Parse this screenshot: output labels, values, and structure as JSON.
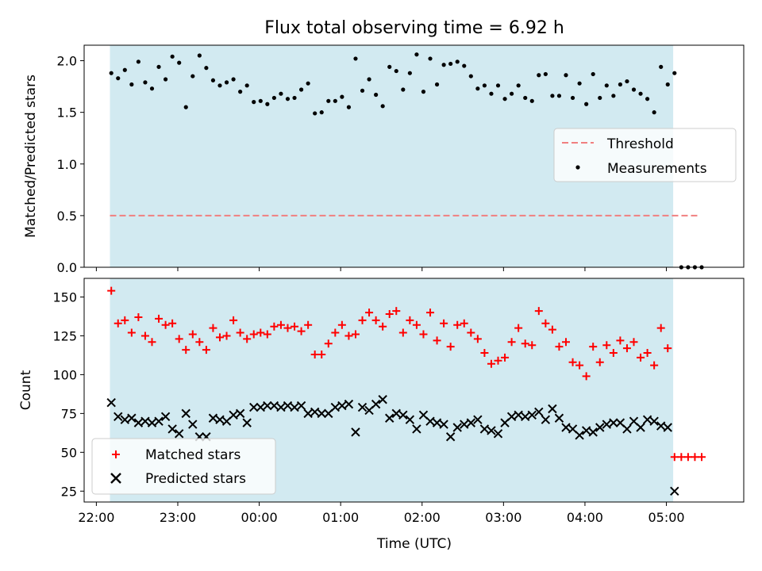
{
  "figure": {
    "title": "Flux total observing time = 6.92 h",
    "xlabel": "Time (UTC)",
    "colors": {
      "shade": "#add8e6",
      "measurement": "#000000",
      "threshold": "#f08080",
      "matched": "#ff0000",
      "predicted": "#000000"
    }
  },
  "chart_data": [
    {
      "type": "scatter",
      "ylabel": "Matched/Predicted stars",
      "ylim": [
        0,
        2.15
      ],
      "xlim": [
        "21:51",
        "05:57"
      ],
      "y_ticks": [
        "0.0",
        "0.5",
        "1.0",
        "1.5",
        "2.0"
      ],
      "shaded_span": [
        "22:10",
        "05:05"
      ],
      "threshold": {
        "name": "Threshold",
        "value": 0.5,
        "x": [
          "22:10",
          "05:25"
        ]
      },
      "legend_position": "center-right",
      "series": [
        {
          "name": "Measurements",
          "points": [
            [
              "22:11",
              1.88
            ],
            [
              "22:16",
              1.83
            ],
            [
              "22:21",
              1.91
            ],
            [
              "22:26",
              1.77
            ],
            [
              "22:31",
              1.99
            ],
            [
              "22:36",
              1.79
            ],
            [
              "22:41",
              1.73
            ],
            [
              "22:46",
              1.94
            ],
            [
              "22:51",
              1.82
            ],
            [
              "22:56",
              2.04
            ],
            [
              "23:01",
              1.98
            ],
            [
              "23:06",
              1.55
            ],
            [
              "23:11",
              1.85
            ],
            [
              "23:16",
              2.05
            ],
            [
              "23:21",
              1.93
            ],
            [
              "23:26",
              1.81
            ],
            [
              "23:31",
              1.76
            ],
            [
              "23:36",
              1.79
            ],
            [
              "23:41",
              1.82
            ],
            [
              "23:46",
              1.7
            ],
            [
              "23:51",
              1.76
            ],
            [
              "23:56",
              1.6
            ],
            [
              "00:01",
              1.61
            ],
            [
              "00:06",
              1.58
            ],
            [
              "00:11",
              1.64
            ],
            [
              "00:16",
              1.68
            ],
            [
              "00:21",
              1.63
            ],
            [
              "00:26",
              1.64
            ],
            [
              "00:31",
              1.72
            ],
            [
              "00:36",
              1.78
            ],
            [
              "00:41",
              1.49
            ],
            [
              "00:46",
              1.5
            ],
            [
              "00:51",
              1.61
            ],
            [
              "00:56",
              1.61
            ],
            [
              "01:01",
              1.65
            ],
            [
              "01:06",
              1.55
            ],
            [
              "01:11",
              2.02
            ],
            [
              "01:16",
              1.71
            ],
            [
              "01:21",
              1.82
            ],
            [
              "01:26",
              1.67
            ],
            [
              "01:31",
              1.56
            ],
            [
              "01:36",
              1.94
            ],
            [
              "01:41",
              1.9
            ],
            [
              "01:46",
              1.72
            ],
            [
              "01:51",
              1.88
            ],
            [
              "01:56",
              2.06
            ],
            [
              "02:01",
              1.7
            ],
            [
              "02:06",
              2.02
            ],
            [
              "02:11",
              1.77
            ],
            [
              "02:16",
              1.96
            ],
            [
              "02:21",
              1.97
            ],
            [
              "02:26",
              1.99
            ],
            [
              "02:31",
              1.95
            ],
            [
              "02:36",
              1.85
            ],
            [
              "02:41",
              1.73
            ],
            [
              "02:46",
              1.76
            ],
            [
              "02:51",
              1.68
            ],
            [
              "02:56",
              1.76
            ],
            [
              "03:01",
              1.63
            ],
            [
              "03:06",
              1.68
            ],
            [
              "03:11",
              1.76
            ],
            [
              "03:16",
              1.64
            ],
            [
              "03:21",
              1.61
            ],
            [
              "03:26",
              1.86
            ],
            [
              "03:31",
              1.87
            ],
            [
              "03:36",
              1.66
            ],
            [
              "03:41",
              1.66
            ],
            [
              "03:46",
              1.86
            ],
            [
              "03:51",
              1.64
            ],
            [
              "03:56",
              1.78
            ],
            [
              "04:01",
              1.58
            ],
            [
              "04:06",
              1.87
            ],
            [
              "04:11",
              1.64
            ],
            [
              "04:16",
              1.76
            ],
            [
              "04:21",
              1.66
            ],
            [
              "04:26",
              1.77
            ],
            [
              "04:31",
              1.8
            ],
            [
              "04:36",
              1.72
            ],
            [
              "04:41",
              1.68
            ],
            [
              "04:46",
              1.63
            ],
            [
              "04:51",
              1.5
            ],
            [
              "04:56",
              1.94
            ],
            [
              "05:01",
              1.77
            ],
            [
              "05:06",
              1.88
            ],
            [
              "05:11",
              0.0
            ],
            [
              "05:16",
              0.0
            ],
            [
              "05:21",
              0.0
            ],
            [
              "05:26",
              0.0
            ]
          ]
        }
      ]
    },
    {
      "type": "scatter",
      "ylabel": "Count",
      "ylim": [
        18,
        162
      ],
      "xlim": [
        "21:51",
        "05:57"
      ],
      "y_ticks": [
        "25",
        "50",
        "75",
        "100",
        "125",
        "150"
      ],
      "x_ticks": [
        "22:00",
        "23:00",
        "00:00",
        "01:00",
        "02:00",
        "03:00",
        "04:00",
        "05:00"
      ],
      "shaded_span": [
        "22:10",
        "05:05"
      ],
      "legend_position": "lower-left",
      "series": [
        {
          "name": "Matched stars",
          "marker": "plus",
          "points": [
            [
              "22:11",
              154
            ],
            [
              "22:16",
              133
            ],
            [
              "22:21",
              135
            ],
            [
              "22:26",
              127
            ],
            [
              "22:31",
              137
            ],
            [
              "22:36",
              125
            ],
            [
              "22:41",
              121
            ],
            [
              "22:46",
              136
            ],
            [
              "22:51",
              132
            ],
            [
              "22:56",
              133
            ],
            [
              "23:01",
              123
            ],
            [
              "23:06",
              116
            ],
            [
              "23:11",
              126
            ],
            [
              "23:16",
              121
            ],
            [
              "23:21",
              116
            ],
            [
              "23:26",
              130
            ],
            [
              "23:31",
              124
            ],
            [
              "23:36",
              125
            ],
            [
              "23:41",
              135
            ],
            [
              "23:46",
              127
            ],
            [
              "23:51",
              123
            ],
            [
              "23:56",
              126
            ],
            [
              "00:01",
              127
            ],
            [
              "00:06",
              126
            ],
            [
              "00:11",
              131
            ],
            [
              "00:16",
              132
            ],
            [
              "00:21",
              130
            ],
            [
              "00:26",
              131
            ],
            [
              "00:31",
              128
            ],
            [
              "00:36",
              132
            ],
            [
              "00:41",
              113
            ],
            [
              "00:46",
              113
            ],
            [
              "00:51",
              120
            ],
            [
              "00:56",
              127
            ],
            [
              "01:01",
              132
            ],
            [
              "01:06",
              125
            ],
            [
              "01:11",
              126
            ],
            [
              "01:16",
              135
            ],
            [
              "01:21",
              140
            ],
            [
              "01:26",
              135
            ],
            [
              "01:31",
              131
            ],
            [
              "01:36",
              139
            ],
            [
              "01:41",
              141
            ],
            [
              "01:46",
              127
            ],
            [
              "01:51",
              135
            ],
            [
              "01:56",
              132
            ],
            [
              "02:01",
              126
            ],
            [
              "02:06",
              140
            ],
            [
              "02:11",
              122
            ],
            [
              "02:16",
              133
            ],
            [
              "02:21",
              118
            ],
            [
              "02:26",
              132
            ],
            [
              "02:31",
              133
            ],
            [
              "02:36",
              127
            ],
            [
              "02:41",
              123
            ],
            [
              "02:46",
              114
            ],
            [
              "02:51",
              107
            ],
            [
              "02:56",
              109
            ],
            [
              "03:01",
              111
            ],
            [
              "03:06",
              121
            ],
            [
              "03:11",
              130
            ],
            [
              "03:16",
              120
            ],
            [
              "03:21",
              119
            ],
            [
              "03:26",
              141
            ],
            [
              "03:31",
              133
            ],
            [
              "03:36",
              129
            ],
            [
              "03:41",
              118
            ],
            [
              "03:46",
              121
            ],
            [
              "03:51",
              108
            ],
            [
              "03:56",
              106
            ],
            [
              "04:01",
              99
            ],
            [
              "04:06",
              118
            ],
            [
              "04:11",
              108
            ],
            [
              "04:16",
              119
            ],
            [
              "04:21",
              114
            ],
            [
              "04:26",
              122
            ],
            [
              "04:31",
              117
            ],
            [
              "04:36",
              121
            ],
            [
              "04:41",
              111
            ],
            [
              "04:46",
              114
            ],
            [
              "04:51",
              106
            ],
            [
              "04:56",
              130
            ],
            [
              "05:01",
              117
            ],
            [
              "05:06",
              47
            ],
            [
              "05:11",
              47
            ],
            [
              "05:16",
              47
            ],
            [
              "05:21",
              47
            ],
            [
              "05:26",
              47
            ]
          ]
        },
        {
          "name": "Predicted stars",
          "marker": "cross",
          "points": [
            [
              "22:11",
              82
            ],
            [
              "22:16",
              73
            ],
            [
              "22:21",
              71
            ],
            [
              "22:26",
              72
            ],
            [
              "22:31",
              69
            ],
            [
              "22:36",
              70
            ],
            [
              "22:41",
              69
            ],
            [
              "22:46",
              70
            ],
            [
              "22:51",
              73
            ],
            [
              "22:56",
              65
            ],
            [
              "23:01",
              62
            ],
            [
              "23:06",
              75
            ],
            [
              "23:11",
              68
            ],
            [
              "23:16",
              60
            ],
            [
              "23:21",
              60
            ],
            [
              "23:26",
              72
            ],
            [
              "23:31",
              71
            ],
            [
              "23:36",
              70
            ],
            [
              "23:41",
              74
            ],
            [
              "23:46",
              75
            ],
            [
              "23:51",
              69
            ],
            [
              "23:56",
              79
            ],
            [
              "00:01",
              79
            ],
            [
              "00:06",
              80
            ],
            [
              "00:11",
              80
            ],
            [
              "00:16",
              79
            ],
            [
              "00:21",
              80
            ],
            [
              "00:26",
              79
            ],
            [
              "00:31",
              80
            ],
            [
              "00:36",
              75
            ],
            [
              "00:41",
              76
            ],
            [
              "00:46",
              75
            ],
            [
              "00:51",
              75
            ],
            [
              "00:56",
              79
            ],
            [
              "01:01",
              80
            ],
            [
              "01:06",
              81
            ],
            [
              "01:11",
              63
            ],
            [
              "01:16",
              79
            ],
            [
              "01:21",
              77
            ],
            [
              "01:26",
              81
            ],
            [
              "01:31",
              84
            ],
            [
              "01:36",
              72
            ],
            [
              "01:41",
              75
            ],
            [
              "01:46",
              74
            ],
            [
              "01:51",
              71
            ],
            [
              "01:56",
              65
            ],
            [
              "02:01",
              74
            ],
            [
              "02:06",
              70
            ],
            [
              "02:11",
              69
            ],
            [
              "02:16",
              68
            ],
            [
              "02:21",
              60
            ],
            [
              "02:26",
              66
            ],
            [
              "02:31",
              68
            ],
            [
              "02:36",
              69
            ],
            [
              "02:41",
              71
            ],
            [
              "02:46",
              65
            ],
            [
              "02:51",
              64
            ],
            [
              "02:56",
              62
            ],
            [
              "03:01",
              69
            ],
            [
              "03:06",
              73
            ],
            [
              "03:11",
              74
            ],
            [
              "03:16",
              73
            ],
            [
              "03:21",
              74
            ],
            [
              "03:26",
              76
            ],
            [
              "03:31",
              71
            ],
            [
              "03:36",
              78
            ],
            [
              "03:41",
              72
            ],
            [
              "03:46",
              66
            ],
            [
              "03:51",
              65
            ],
            [
              "03:56",
              61
            ],
            [
              "04:01",
              64
            ],
            [
              "04:06",
              63
            ],
            [
              "04:11",
              66
            ],
            [
              "04:16",
              68
            ],
            [
              "04:21",
              69
            ],
            [
              "04:26",
              69
            ],
            [
              "04:31",
              65
            ],
            [
              "04:36",
              70
            ],
            [
              "04:41",
              66
            ],
            [
              "04:46",
              71
            ],
            [
              "04:51",
              70
            ],
            [
              "04:56",
              67
            ],
            [
              "05:01",
              66
            ],
            [
              "05:06",
              25
            ]
          ]
        }
      ]
    }
  ]
}
